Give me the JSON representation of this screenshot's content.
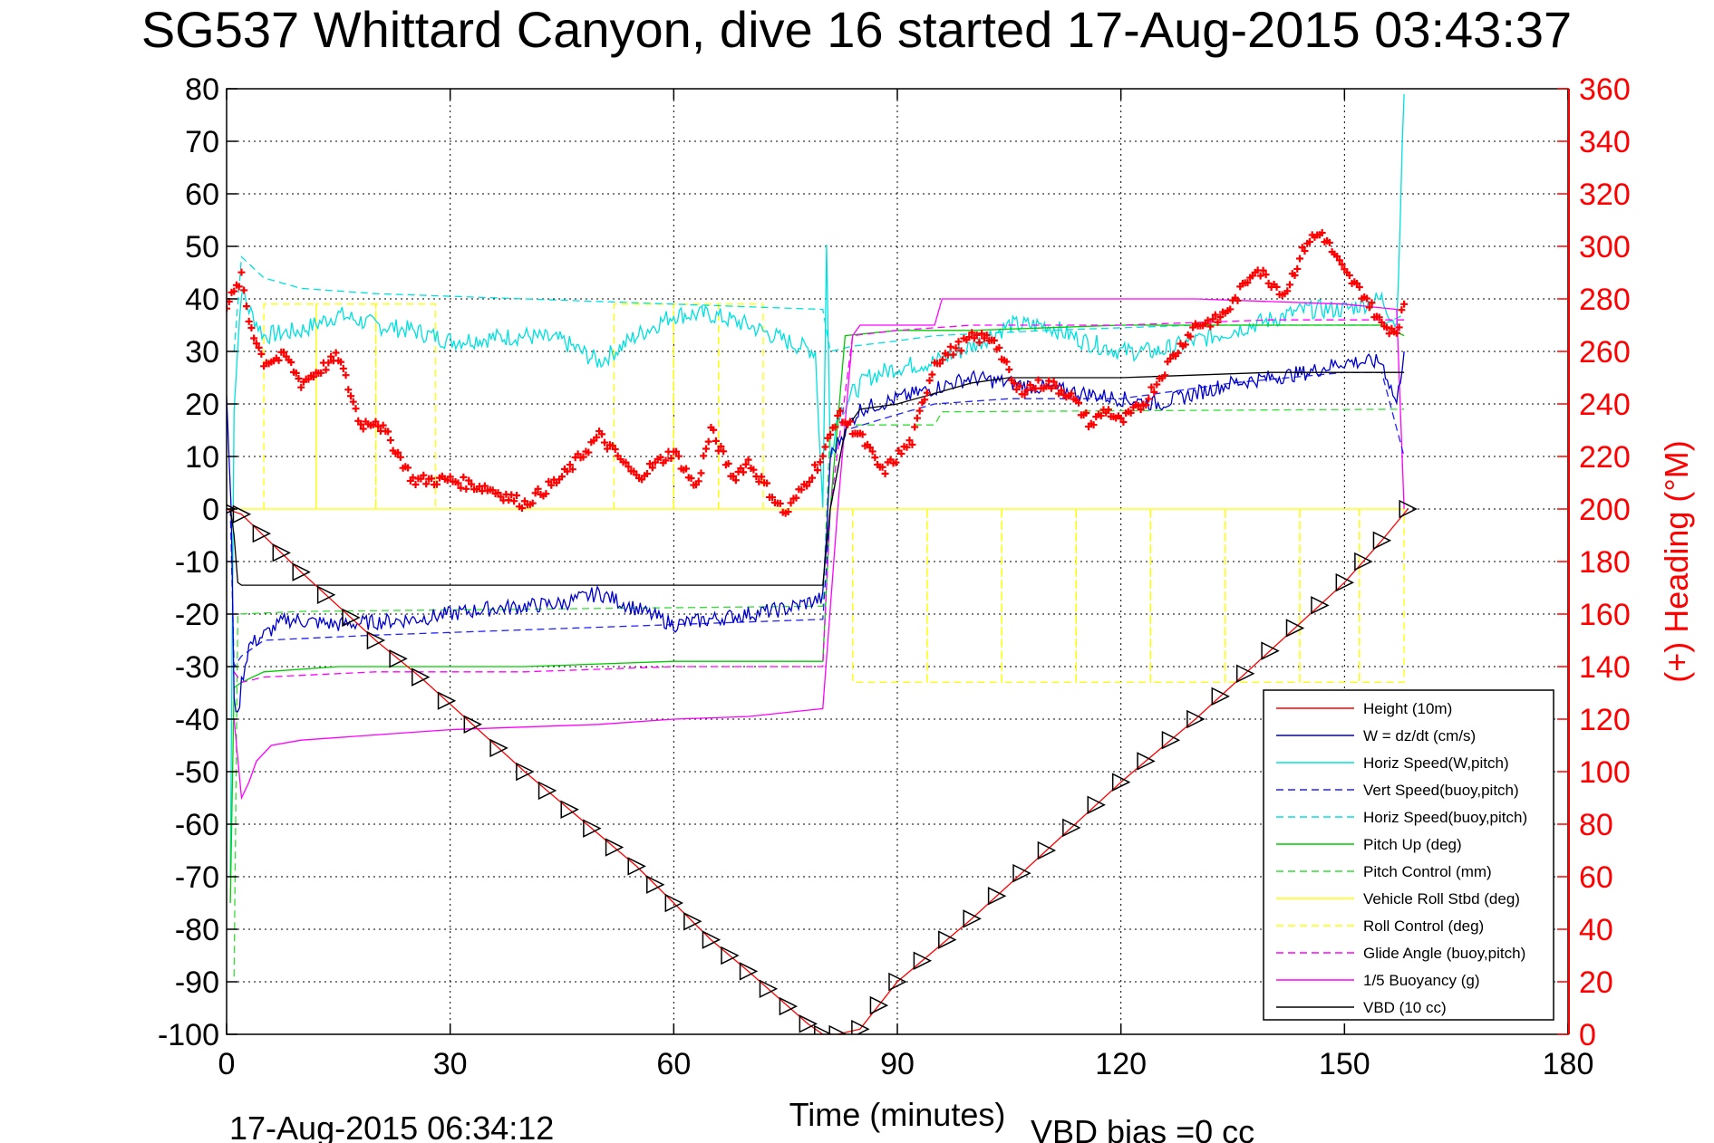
{
  "chart_data": {
    "type": "line",
    "title": "SG537 Whittard Canyon, dive 16 started 17-Aug-2015 03:43:37",
    "xlabel": "Time (minutes)",
    "ylabel": "",
    "y2label": "(+) Heading (°M)",
    "xlim": [
      0,
      180
    ],
    "ylim": [
      -100,
      80
    ],
    "y2lim": [
      0,
      360
    ],
    "x_ticks": [
      "0",
      "30",
      "60",
      "90",
      "120",
      "150",
      "180"
    ],
    "y_ticks": [
      "80",
      "70",
      "60",
      "50",
      "40",
      "30",
      "20",
      "10",
      "0",
      "-10",
      "-20",
      "-30",
      "-40",
      "-50",
      "-60",
      "-70",
      "-80",
      "-90",
      "-100"
    ],
    "y2_ticks": [
      "360",
      "340",
      "320",
      "300",
      "280",
      "260",
      "240",
      "220",
      "200",
      "180",
      "160",
      "140",
      "120",
      "100",
      "80",
      "60",
      "40",
      "20",
      "0"
    ],
    "grid": true,
    "legend_position": "bottom-right",
    "footer_left": "17-Aug-2015 06:34:12",
    "footer_right": "VBD bias =0 cc",
    "colors": {
      "height": "#ff0000",
      "w": "#0000cc",
      "horiz_w": "#00e0e0",
      "vert_buoy": "#2222ff",
      "horiz_buoy": "#00e0e0",
      "pitch": "#00cc00",
      "pitch_control": "#33dd33",
      "roll": "#ffff00",
      "roll_control": "#ffff00",
      "glide": "#ff00ff",
      "buoyancy": "#ff00ff",
      "vbd": "#000000",
      "heading": "#ff0000"
    },
    "series": [
      {
        "name": "Height (10m)",
        "key": "height",
        "dash": false,
        "axis": "left",
        "x": [
          0,
          2,
          10,
          20,
          26,
          40,
          55,
          60,
          65,
          70,
          78,
          80,
          82,
          85,
          90,
          100,
          110,
          120,
          130,
          140,
          150,
          155,
          158.5
        ],
        "y": [
          0,
          -1,
          -12,
          -25,
          -32,
          -50,
          -68,
          -75,
          -82,
          -88,
          -98,
          -100,
          -100,
          -99,
          -90,
          -78,
          -65,
          -52,
          -40,
          -27,
          -14,
          -6,
          0
        ],
        "markers": "triangle"
      },
      {
        "name": "W = dz/dt (cm/s)",
        "key": "w",
        "dash": false,
        "axis": "left",
        "noise": 1.5,
        "x": [
          0,
          0.6,
          1.0,
          1.5,
          2,
          3,
          5,
          8,
          15,
          25,
          35,
          45,
          50,
          55,
          60,
          70,
          75,
          80,
          80.5,
          81,
          83,
          85,
          90,
          95,
          100,
          105,
          110,
          115,
          120,
          125,
          130,
          135,
          140,
          145,
          150,
          155,
          157,
          158
        ],
        "y": [
          22,
          0,
          -35,
          -40,
          -33,
          -26,
          -24,
          -21,
          -22,
          -21,
          -19,
          -18,
          -16,
          -19,
          -22,
          -20,
          -19,
          -17,
          -5,
          10,
          15,
          19,
          21,
          23,
          25,
          24,
          23,
          22,
          21,
          20,
          22,
          24,
          25,
          26,
          28,
          28,
          20,
          30
        ]
      },
      {
        "name": "Horiz Speed(W,pitch)",
        "key": "horiz_w",
        "dash": false,
        "axis": "left",
        "noise": 1.8,
        "x": [
          0.5,
          1,
          2,
          3,
          5,
          10,
          15,
          20,
          25,
          30,
          40,
          45,
          50,
          55,
          60,
          65,
          70,
          75,
          79,
          80,
          80.5,
          81,
          82,
          84,
          86,
          90,
          95,
          100,
          105,
          110,
          115,
          120,
          125,
          130,
          135,
          140,
          145,
          150,
          155,
          157,
          158
        ],
        "y": [
          -70,
          20,
          42,
          38,
          33,
          34,
          37,
          35,
          34,
          32,
          33,
          32,
          28,
          33,
          37,
          37,
          35,
          32,
          30,
          0,
          50,
          10,
          18,
          22,
          25,
          27,
          28,
          31,
          35,
          35,
          32,
          30,
          30,
          32,
          34,
          36,
          38,
          38,
          40,
          35,
          79
        ]
      },
      {
        "name": "Vert Speed(buoy,pitch)",
        "key": "vert_buoy",
        "dash": true,
        "axis": "left",
        "x": [
          0.5,
          1,
          2,
          5,
          20,
          40,
          60,
          80,
          81,
          83,
          90,
          95,
          105,
          120,
          135,
          150,
          155,
          158
        ],
        "y": [
          0,
          -30,
          -28,
          -25,
          -24,
          -23,
          -22,
          -21,
          0,
          15,
          18,
          20,
          21,
          21,
          24,
          26,
          26,
          10
        ]
      },
      {
        "name": "Horiz Speed(buoy,pitch)",
        "key": "horiz_buoy",
        "dash": true,
        "axis": "left",
        "x": [
          1,
          2,
          5,
          10,
          20,
          40,
          60,
          80,
          81,
          84,
          90,
          95,
          110,
          130,
          150,
          155,
          158
        ],
        "y": [
          30,
          48,
          44,
          42,
          41,
          40,
          39,
          38,
          30,
          31,
          32,
          33,
          34,
          35,
          35,
          35,
          37
        ]
      },
      {
        "name": "Pitch Up (deg)",
        "key": "pitch",
        "dash": false,
        "axis": "left",
        "x": [
          0.5,
          1,
          2,
          5,
          15,
          40,
          60,
          80,
          81,
          83,
          90,
          100,
          120,
          140,
          155,
          158
        ],
        "y": [
          -75,
          -34,
          -33,
          -31,
          -30,
          -30,
          -29,
          -29,
          0,
          33,
          34,
          34,
          35,
          35,
          35,
          33
        ]
      },
      {
        "name": "Pitch Control (mm)",
        "key": "pitch_control",
        "dash": true,
        "axis": "left",
        "x": [
          1,
          1.5,
          10,
          80,
          81,
          95,
          96,
          158
        ],
        "y": [
          -89,
          -20,
          -19.5,
          -18.5,
          16,
          16,
          18.5,
          19
        ]
      },
      {
        "name": "Vehicle Roll Stbd (deg)",
        "key": "roll",
        "dash": false,
        "axis": "left",
        "x": [
          0,
          158
        ],
        "y": [
          0,
          0
        ]
      },
      {
        "name": "Roll Control (deg)",
        "key": "roll_control",
        "dash": true,
        "axis": "left",
        "square_segments": [
          [
            5,
            12,
            0,
            39
          ],
          [
            12,
            20,
            0,
            39
          ],
          [
            20,
            28,
            0,
            39
          ],
          [
            52,
            60,
            0,
            39
          ],
          [
            60,
            66,
            0,
            39
          ],
          [
            66,
            72,
            0,
            39
          ],
          [
            84,
            94,
            0,
            -33
          ],
          [
            94,
            104,
            0,
            -33
          ],
          [
            104,
            114,
            0,
            -33
          ],
          [
            114,
            124,
            0,
            -33
          ],
          [
            124,
            134,
            0,
            -33
          ],
          [
            134,
            144,
            0,
            -33
          ],
          [
            144,
            152,
            0,
            -33
          ],
          [
            152,
            158,
            0,
            -33
          ]
        ]
      },
      {
        "name": "Glide Angle (buoy,pitch)",
        "key": "glide",
        "dash": true,
        "axis": "left",
        "x": [
          1,
          2,
          5,
          20,
          40,
          60,
          80,
          81,
          84,
          90,
          100,
          120,
          140,
          155,
          158
        ],
        "y": [
          -31,
          -33,
          -32,
          -31,
          -31,
          -30,
          -30,
          0,
          33,
          34,
          35,
          35,
          36,
          36,
          36
        ]
      },
      {
        "name": "1/5 Buoyancy (g)",
        "key": "buoyancy",
        "dash": false,
        "axis": "left",
        "x": [
          1,
          2,
          3,
          4,
          6,
          10,
          20,
          30,
          40,
          50,
          60,
          70,
          80,
          82,
          84,
          85,
          95,
          96,
          130,
          150,
          157,
          158
        ],
        "y": [
          -40,
          -55,
          -52,
          -48,
          -45,
          -44,
          -43,
          -42,
          -41.5,
          -41,
          -40,
          -39.5,
          -38,
          0,
          33,
          35,
          35,
          40,
          40,
          39,
          38,
          0
        ]
      },
      {
        "name": "VBD (10 cc)",
        "key": "vbd",
        "dash": false,
        "axis": "left",
        "x": [
          0.5,
          1,
          1.5,
          2,
          80,
          81,
          83,
          85,
          90,
          95,
          100,
          105,
          120,
          140,
          155,
          158
        ],
        "y": [
          0,
          -5,
          -14,
          -14.5,
          -14.5,
          0,
          15,
          19,
          20,
          22,
          24,
          25,
          25,
          26,
          26,
          26
        ]
      },
      {
        "name": "Heading",
        "key": "heading",
        "dash": false,
        "axis": "right",
        "markers": "plus",
        "x": [
          0,
          1,
          2,
          3,
          5,
          8,
          10,
          12,
          15,
          18,
          20,
          22,
          25,
          30,
          35,
          40,
          45,
          50,
          55,
          60,
          63,
          65,
          68,
          70,
          75,
          80,
          82,
          85,
          88,
          92,
          95,
          100,
          103,
          106,
          110,
          113,
          116,
          118,
          120,
          123,
          127,
          130,
          133,
          135,
          138,
          142,
          145,
          147,
          150,
          153,
          155,
          157,
          158
        ],
        "y": [
          278,
          282,
          288,
          272,
          256,
          258,
          248,
          252,
          258,
          232,
          234,
          226,
          211,
          211,
          208,
          202,
          212,
          228,
          212,
          222,
          208,
          230,
          212,
          218,
          198,
          220,
          236,
          228,
          214,
          226,
          256,
          265,
          265,
          245,
          248,
          244,
          232,
          238,
          233,
          240,
          258,
          270,
          272,
          278,
          292,
          282,
          302,
          305,
          290,
          280,
          270,
          268,
          278
        ]
      }
    ]
  }
}
